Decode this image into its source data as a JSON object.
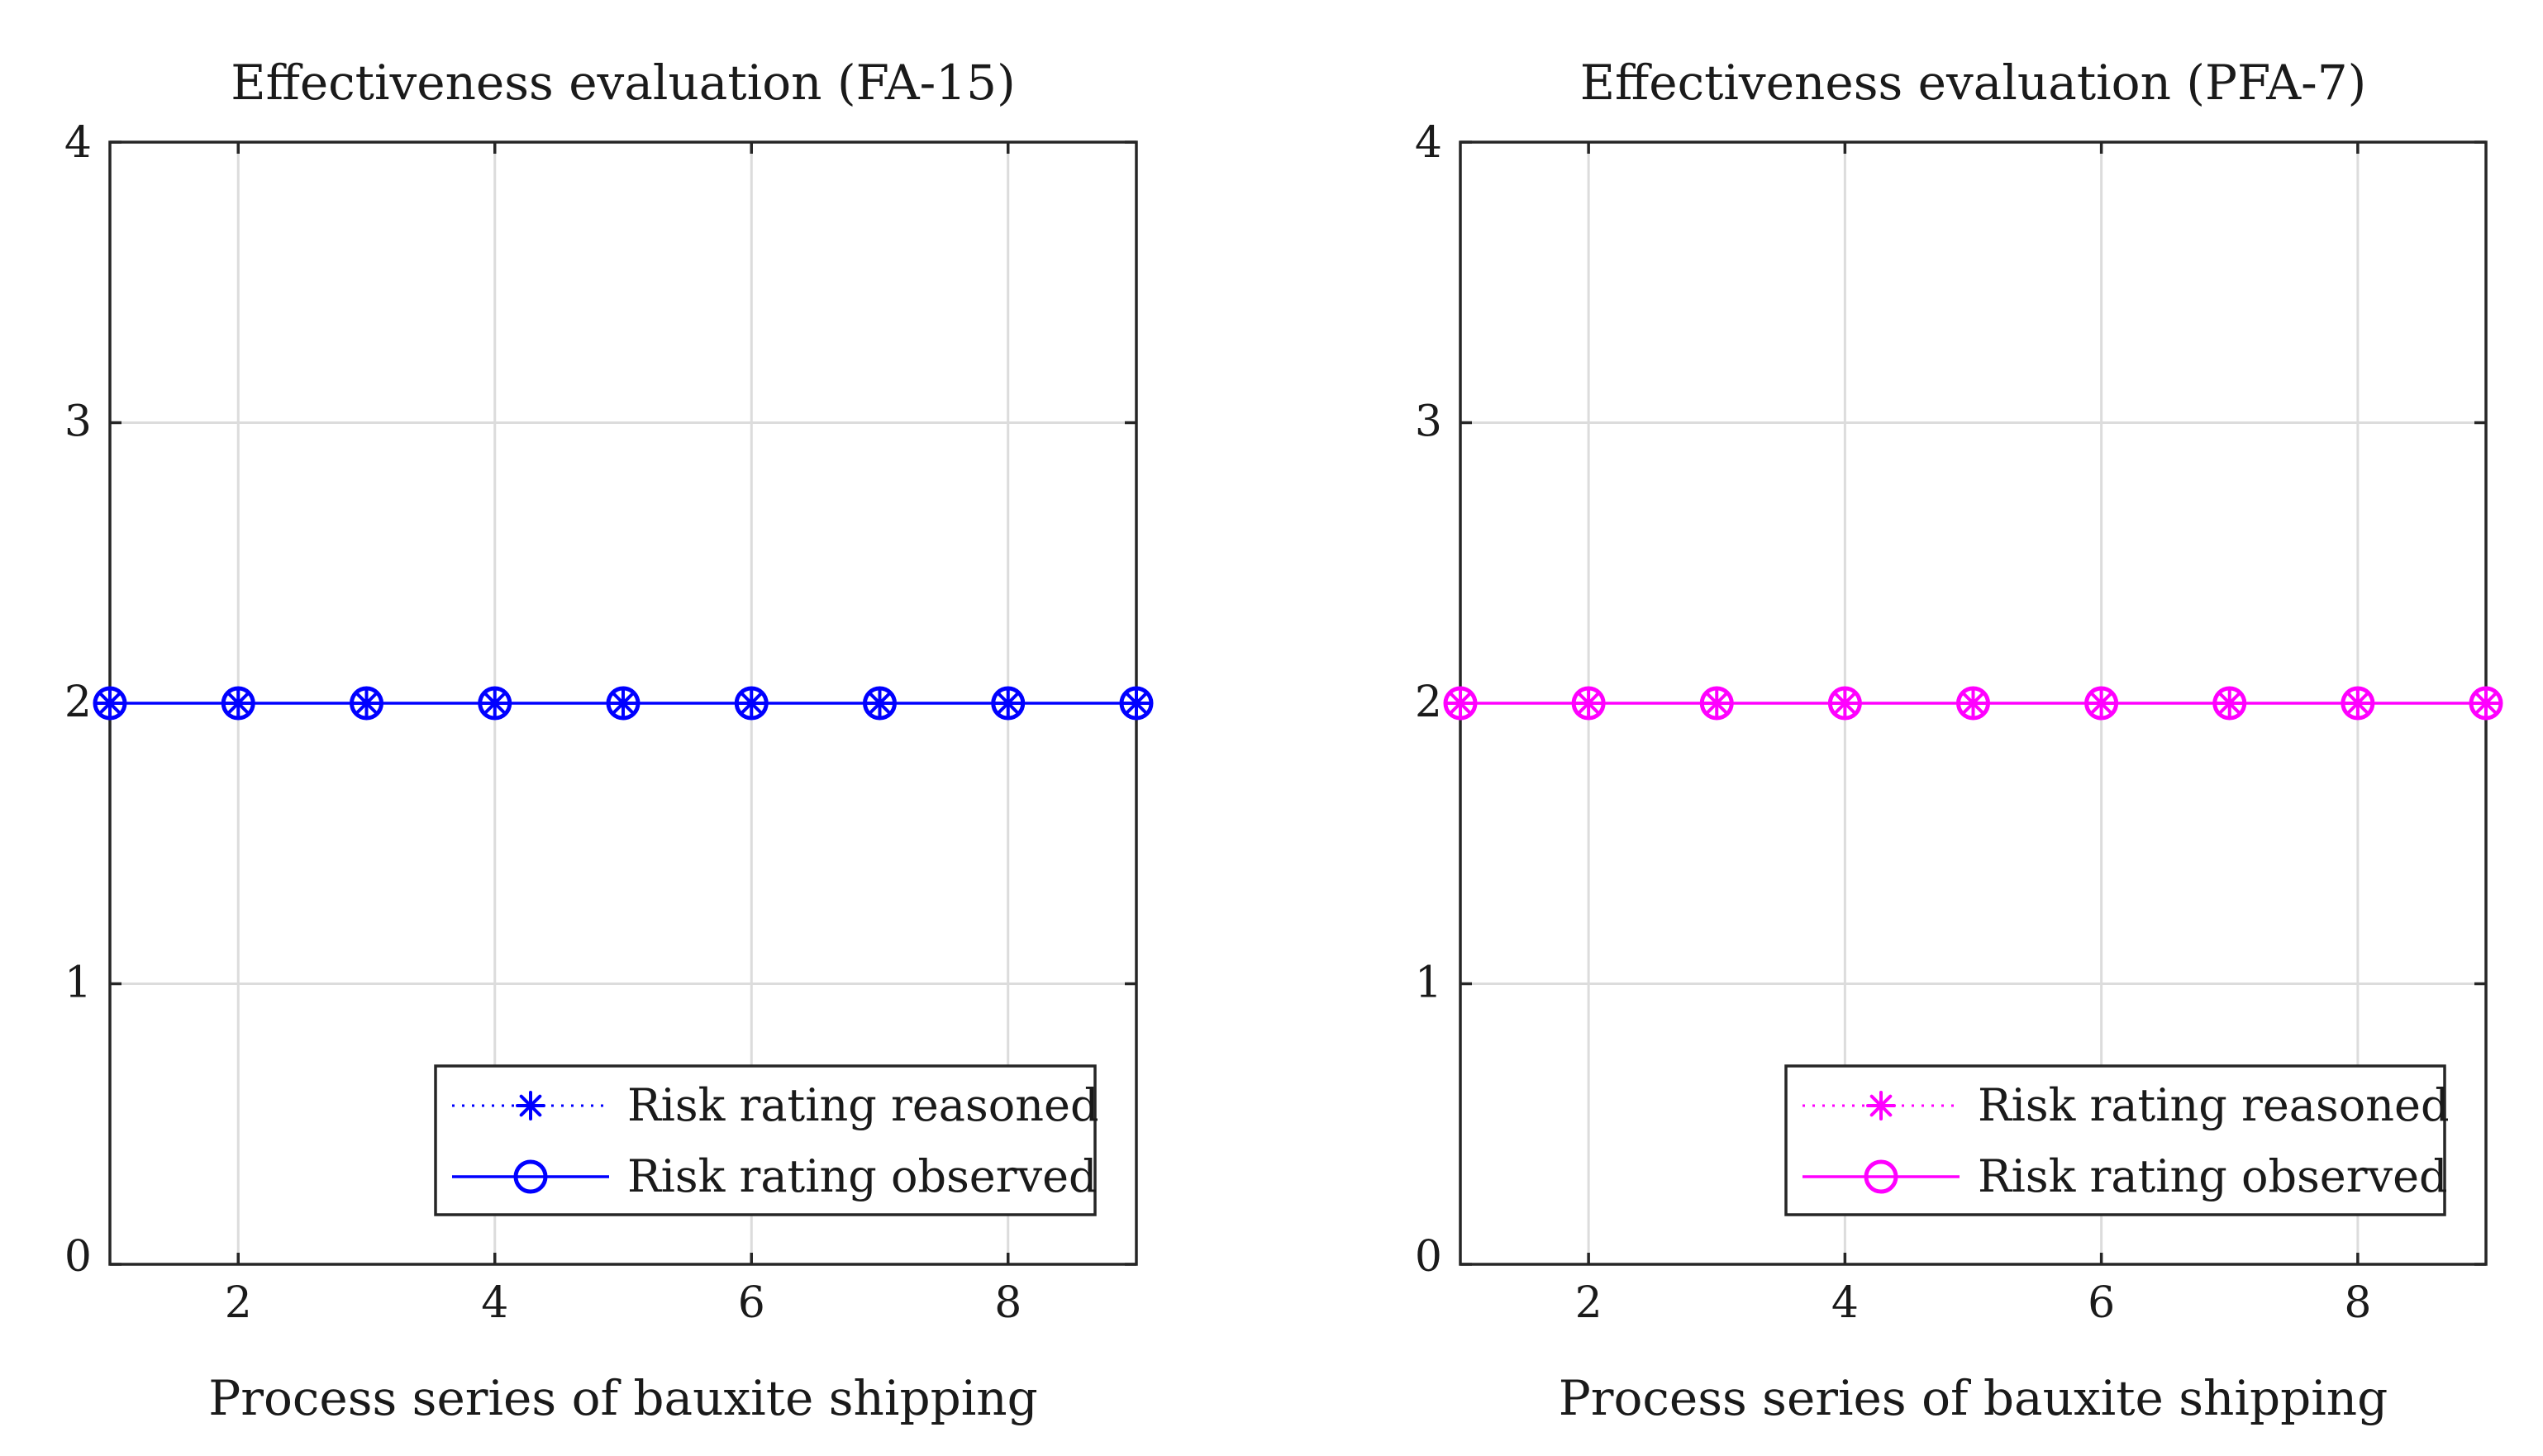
{
  "chart_data": [
    {
      "type": "line",
      "title": "Effectiveness evaluation (FA-15)",
      "xlabel": "Process series of bauxite shipping",
      "ylabel": "",
      "xlim": [
        1,
        9
      ],
      "ylim": [
        0,
        4
      ],
      "xticks": [
        2,
        4,
        6,
        8
      ],
      "yticks": [
        0,
        1,
        2,
        3,
        4
      ],
      "grid": true,
      "legend_position": "bottom-right",
      "color": "#0000ff",
      "x": [
        1,
        2,
        3,
        4,
        5,
        6,
        7,
        8,
        9
      ],
      "series": [
        {
          "name": "Risk rating reasoned",
          "marker": "asterisk",
          "line": "dotted",
          "values": [
            2,
            2,
            2,
            2,
            2,
            2,
            2,
            2,
            2
          ]
        },
        {
          "name": "Risk rating observed",
          "marker": "circle",
          "line": "solid",
          "values": [
            2,
            2,
            2,
            2,
            2,
            2,
            2,
            2,
            2
          ]
        }
      ]
    },
    {
      "type": "line",
      "title": "Effectiveness evaluation (PFA-7)",
      "xlabel": "Process series of bauxite shipping",
      "ylabel": "",
      "xlim": [
        1,
        9
      ],
      "ylim": [
        0,
        4
      ],
      "xticks": [
        2,
        4,
        6,
        8
      ],
      "yticks": [
        0,
        1,
        2,
        3,
        4
      ],
      "grid": true,
      "legend_position": "bottom-right",
      "color": "#ff00ff",
      "x": [
        1,
        2,
        3,
        4,
        5,
        6,
        7,
        8,
        9
      ],
      "series": [
        {
          "name": "Risk rating reasoned",
          "marker": "asterisk",
          "line": "dotted",
          "values": [
            2,
            2,
            2,
            2,
            2,
            2,
            2,
            2,
            2
          ]
        },
        {
          "name": "Risk rating observed",
          "marker": "circle",
          "line": "solid",
          "values": [
            2,
            2,
            2,
            2,
            2,
            2,
            2,
            2,
            2
          ]
        }
      ]
    }
  ]
}
